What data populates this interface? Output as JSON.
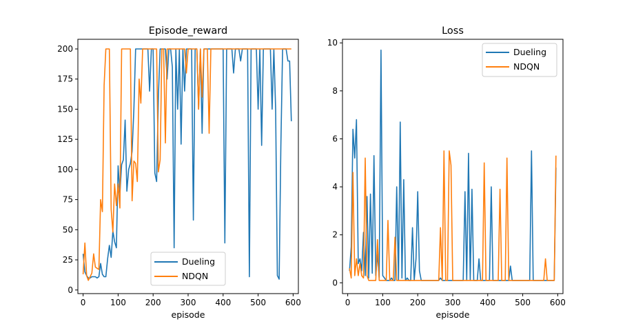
{
  "colors": {
    "series1": "#1f77b4",
    "series2": "#ff7f0e"
  },
  "chart_data": [
    {
      "type": "line",
      "title": "Episode_reward",
      "xlabel": "episode",
      "ylabel": "",
      "xlim": [
        -15,
        615
      ],
      "ylim": [
        -3,
        208
      ],
      "xticks": [
        0,
        100,
        200,
        300,
        400,
        500,
        600
      ],
      "yticks": [
        0,
        25,
        50,
        75,
        100,
        125,
        150,
        175,
        200
      ],
      "legend_position": "lower-center",
      "series": [
        {
          "name": "Dueling",
          "color": "#1f77b4",
          "x": [
            0,
            5,
            10,
            15,
            20,
            25,
            30,
            35,
            40,
            45,
            50,
            55,
            60,
            65,
            70,
            75,
            80,
            85,
            90,
            95,
            100,
            105,
            110,
            115,
            120,
            125,
            130,
            135,
            140,
            145,
            150,
            155,
            160,
            165,
            170,
            175,
            180,
            185,
            190,
            195,
            200,
            205,
            210,
            215,
            220,
            225,
            230,
            235,
            240,
            245,
            250,
            255,
            260,
            265,
            270,
            275,
            280,
            285,
            290,
            295,
            300,
            305,
            310,
            315,
            320,
            325,
            330,
            335,
            340,
            345,
            350,
            355,
            360,
            365,
            370,
            375,
            380,
            385,
            390,
            395,
            400,
            405,
            410,
            415,
            420,
            425,
            430,
            435,
            440,
            445,
            450,
            455,
            460,
            465,
            470,
            475,
            480,
            485,
            490,
            495,
            500,
            505,
            510,
            515,
            520,
            525,
            530,
            535,
            540,
            545,
            550,
            555,
            560,
            565,
            570,
            575,
            580,
            585,
            590,
            595
          ],
          "values": [
            30,
            15,
            12,
            10,
            10,
            11,
            11,
            11,
            10,
            11,
            22,
            13,
            11,
            11,
            26,
            37,
            27,
            49,
            40,
            35,
            103,
            80,
            104,
            108,
            141,
            82,
            100,
            105,
            115,
            150,
            200,
            200,
            200,
            200,
            200,
            200,
            200,
            200,
            165,
            200,
            200,
            97,
            90,
            160,
            200,
            200,
            200,
            200,
            175,
            200,
            200,
            185,
            35,
            200,
            150,
            200,
            121,
            200,
            165,
            200,
            200,
            200,
            200,
            58,
            200,
            200,
            150,
            200,
            130,
            200,
            200,
            200,
            200,
            200,
            200,
            200,
            200,
            200,
            200,
            200,
            200,
            39,
            200,
            200,
            200,
            200,
            180,
            200,
            200,
            200,
            190,
            200,
            200,
            200,
            200,
            11,
            200,
            200,
            200,
            200,
            150,
            200,
            120,
            200,
            200,
            200,
            200,
            200,
            150,
            200,
            150,
            12,
            9,
            120,
            200,
            200,
            200,
            190,
            190,
            140
          ]
        },
        {
          "name": "NDQN",
          "color": "#ff7f0e",
          "x": [
            0,
            5,
            10,
            15,
            20,
            25,
            30,
            35,
            40,
            45,
            50,
            55,
            60,
            65,
            70,
            75,
            80,
            85,
            90,
            95,
            100,
            105,
            110,
            115,
            120,
            125,
            130,
            135,
            140,
            145,
            150,
            155,
            160,
            165,
            170,
            175,
            180,
            185,
            190,
            195,
            200,
            205,
            210,
            215,
            220,
            225,
            230,
            235,
            240,
            245,
            250,
            255,
            260,
            265,
            270,
            275,
            280,
            285,
            290,
            295,
            300,
            305,
            310,
            315,
            320,
            325,
            330,
            335,
            340,
            345,
            350,
            355,
            360,
            365,
            370,
            375,
            380,
            385,
            390,
            395,
            400,
            405,
            410,
            415,
            420,
            425,
            430,
            435,
            440,
            445,
            450,
            455,
            460,
            465,
            470,
            475,
            480,
            485,
            490,
            495,
            500,
            505,
            510,
            515,
            520,
            525,
            530,
            535,
            540,
            545,
            550,
            555,
            560,
            565,
            570,
            575,
            580,
            585,
            590,
            595
          ],
          "values": [
            13,
            39,
            12,
            8,
            11,
            14,
            30,
            19,
            18,
            17,
            75,
            65,
            170,
            200,
            200,
            200,
            67,
            48,
            88,
            70,
            88,
            68,
            200,
            200,
            200,
            200,
            200,
            200,
            74,
            107,
            105,
            90,
            175,
            155,
            200,
            200,
            200,
            200,
            200,
            200,
            200,
            200,
            200,
            98,
            108,
            200,
            200,
            122,
            200,
            200,
            200,
            200,
            200,
            200,
            200,
            200,
            200,
            200,
            200,
            180,
            200,
            200,
            200,
            200,
            200,
            200,
            150,
            200,
            160,
            200,
            200,
            200,
            130,
            200,
            200,
            200,
            200,
            200,
            200,
            200,
            200,
            200,
            200,
            200,
            200,
            200,
            200,
            200,
            200,
            200,
            200,
            200,
            200,
            200,
            200,
            200,
            200,
            200,
            200,
            200,
            200,
            200,
            200,
            200,
            200,
            200,
            200,
            200,
            200,
            200,
            200,
            200,
            200,
            200,
            200,
            200,
            200,
            200,
            200,
            200
          ]
        }
      ]
    },
    {
      "type": "line",
      "title": "Loss",
      "xlabel": "episode",
      "ylabel": "",
      "xlim": [
        -15,
        615
      ],
      "ylim": [
        -0.45,
        10.15
      ],
      "xticks": [
        0,
        100,
        200,
        300,
        400,
        500,
        600
      ],
      "yticks": [
        0,
        2,
        4,
        6,
        8,
        10
      ],
      "legend_position": "upper-right",
      "series": [
        {
          "name": "Dueling",
          "color": "#1f77b4",
          "x": [
            5,
            10,
            15,
            20,
            25,
            30,
            35,
            40,
            45,
            50,
            55,
            60,
            65,
            70,
            75,
            80,
            85,
            90,
            95,
            100,
            105,
            110,
            115,
            120,
            125,
            130,
            135,
            140,
            145,
            150,
            155,
            160,
            165,
            170,
            175,
            180,
            185,
            190,
            195,
            200,
            205,
            210,
            215,
            220,
            225,
            230,
            235,
            240,
            245,
            250,
            255,
            260,
            265,
            270,
            275,
            280,
            285,
            290,
            295,
            300,
            305,
            310,
            315,
            320,
            325,
            330,
            335,
            340,
            345,
            350,
            355,
            360,
            365,
            370,
            375,
            380,
            385,
            390,
            395,
            400,
            405,
            410,
            415,
            420,
            425,
            430,
            435,
            440,
            445,
            450,
            455,
            460,
            465,
            470,
            475,
            480,
            485,
            490,
            495,
            500,
            505,
            510,
            515,
            520,
            525,
            530,
            535,
            540,
            545,
            550,
            555,
            560,
            565,
            570,
            575,
            580,
            585,
            590,
            595
          ],
          "values": [
            0.5,
            1.5,
            6.4,
            5.2,
            6.8,
            0.8,
            1.0,
            0.5,
            2.1,
            0.3,
            3.6,
            0.2,
            3.7,
            0.4,
            5.3,
            0.3,
            1.2,
            0.2,
            9.7,
            0.3,
            0.2,
            0.1,
            0.1,
            0.1,
            0.2,
            0.1,
            0.1,
            4.0,
            0.1,
            6.7,
            0.2,
            4.3,
            0.1,
            0.2,
            0.1,
            0.1,
            2.3,
            0.1,
            1.0,
            3.8,
            0.5,
            0.1,
            0.1,
            0.1,
            0.1,
            0.1,
            0.1,
            0.1,
            0.1,
            0.1,
            0.1,
            0.1,
            0.2,
            0.1,
            0.1,
            0.1,
            0.1,
            0.1,
            0.1,
            0.1,
            0.1,
            0.1,
            0.1,
            0.1,
            0.1,
            0.1,
            3.8,
            0.1,
            5.4,
            0.1,
            3.9,
            0.1,
            0.1,
            0.1,
            1.0,
            0.1,
            0.1,
            0.1,
            0.1,
            0.1,
            0.1,
            4.0,
            0.1,
            0.1,
            0.1,
            0.1,
            0.1,
            0.1,
            0.1,
            0.1,
            0.1,
            0.1,
            0.7,
            0.1,
            0.1,
            0.1,
            0.1,
            0.1,
            0.1,
            0.1,
            0.1,
            0.1,
            0.1,
            0.1,
            5.5,
            0.1,
            0.1,
            0.1,
            0.1,
            0.1,
            0.1,
            0.1,
            0.1,
            0.1,
            0.1,
            0.1,
            0.1,
            0.1,
            4.8
          ]
        },
        {
          "name": "NDQN",
          "color": "#ff7f0e",
          "x": [
            5,
            10,
            15,
            20,
            25,
            30,
            35,
            40,
            45,
            50,
            55,
            60,
            65,
            70,
            75,
            80,
            85,
            90,
            95,
            100,
            105,
            110,
            115,
            120,
            125,
            130,
            135,
            140,
            145,
            150,
            155,
            160,
            165,
            170,
            175,
            180,
            185,
            190,
            195,
            200,
            205,
            210,
            215,
            220,
            225,
            230,
            235,
            240,
            245,
            250,
            255,
            260,
            265,
            270,
            275,
            280,
            285,
            290,
            295,
            300,
            305,
            310,
            315,
            320,
            325,
            330,
            335,
            340,
            345,
            350,
            355,
            360,
            365,
            370,
            375,
            380,
            385,
            390,
            395,
            400,
            405,
            410,
            415,
            420,
            425,
            430,
            435,
            440,
            445,
            450,
            455,
            460,
            465,
            470,
            475,
            480,
            485,
            490,
            495,
            500,
            505,
            510,
            515,
            520,
            525,
            530,
            535,
            540,
            545,
            550,
            555,
            560,
            565,
            570,
            575,
            580,
            585,
            590,
            595
          ],
          "values": [
            0.6,
            0.2,
            4.6,
            0.3,
            1.0,
            0.3,
            0.8,
            0.3,
            0.2,
            5.2,
            0.3,
            0.1,
            0.1,
            0.1,
            0.1,
            0.1,
            1.8,
            0.1,
            0.1,
            0.1,
            0.1,
            0.1,
            2.6,
            0.1,
            0.1,
            0.1,
            1.9,
            0.1,
            0.1,
            0.1,
            0.1,
            0.1,
            0.1,
            0.1,
            0.1,
            0.1,
            0.1,
            0.1,
            0.1,
            0.1,
            0.1,
            0.1,
            0.1,
            0.1,
            0.1,
            0.1,
            0.1,
            0.1,
            0.1,
            0.1,
            0.1,
            0.1,
            2.3,
            0.1,
            5.5,
            0.1,
            0.1,
            5.5,
            4.9,
            0.1,
            0.1,
            0.1,
            0.1,
            0.1,
            0.1,
            0.1,
            0.1,
            0.1,
            0.1,
            0.1,
            0.1,
            0.1,
            0.1,
            0.1,
            0.1,
            0.1,
            0.1,
            5.0,
            0.1,
            0.1,
            0.1,
            0.1,
            0.1,
            0.1,
            0.1,
            0.1,
            3.9,
            0.1,
            0.1,
            0.1,
            5.2,
            0.1,
            0.1,
            0.1,
            0.1,
            0.1,
            0.1,
            0.1,
            0.1,
            0.1,
            0.1,
            0.1,
            0.1,
            0.1,
            0.1,
            0.1,
            0.1,
            0.1,
            0.1,
            0.1,
            0.1,
            0.1,
            1.0,
            0.1,
            0.1,
            0.1,
            0.1,
            0.1,
            5.3
          ]
        }
      ]
    }
  ]
}
